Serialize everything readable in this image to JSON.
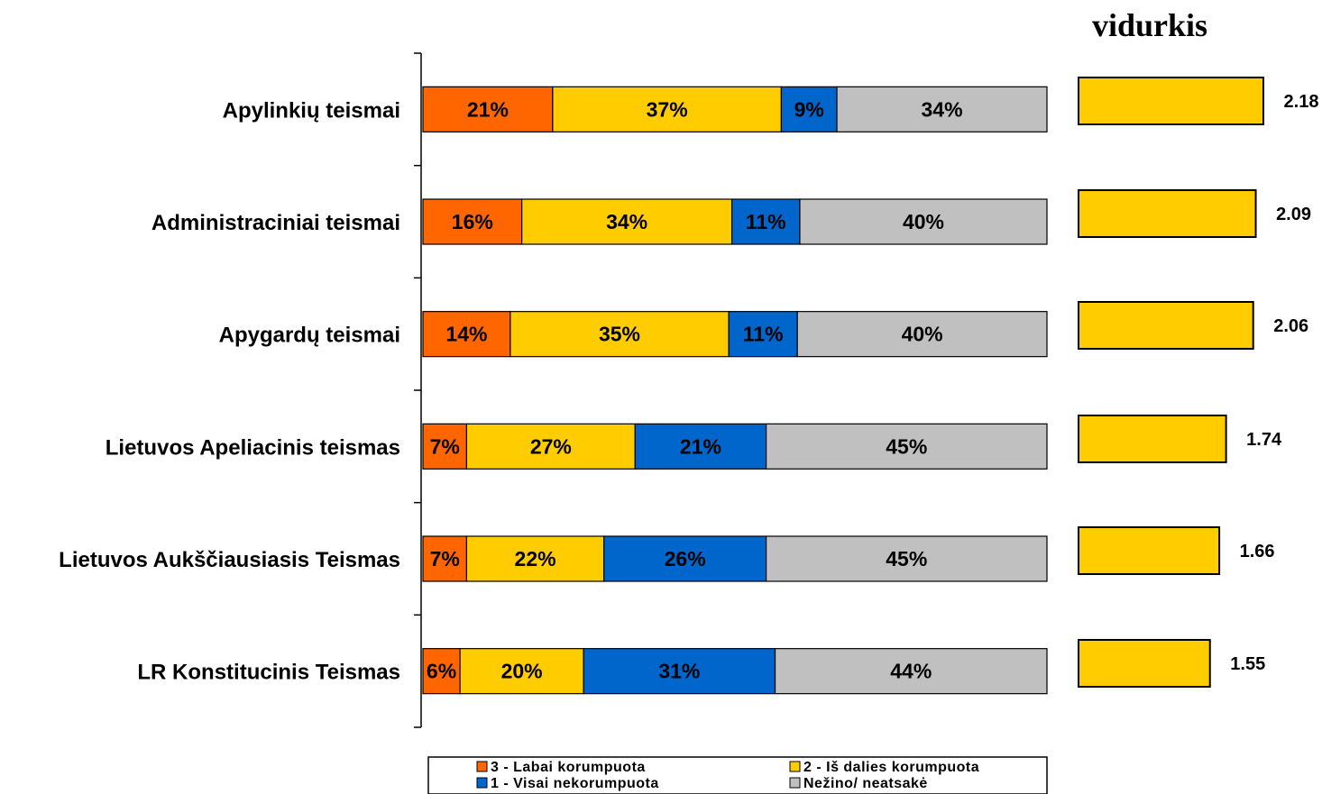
{
  "chart_data": {
    "type": "bar",
    "orientation": "horizontal",
    "stacked": true,
    "categories": [
      "Apylinkių teismai",
      "Administraciniai teismai",
      "Apygardų teismai",
      "Lietuvos Apeliacinis teismas",
      "Lietuvos Aukščiausiasis Teismas",
      "LR Konstitucinis Teismas"
    ],
    "series": [
      {
        "name": "3 - Labai korumpuota",
        "color": "#FF6600",
        "values": [
          21,
          16,
          14,
          7,
          7,
          6
        ]
      },
      {
        "name": "2 - Iš dalies korumpuota",
        "color": "#FFCC00",
        "values": [
          37,
          34,
          35,
          27,
          22,
          20
        ]
      },
      {
        "name": "1 - Visai nekorumpuota",
        "color": "#0066CC",
        "values": [
          9,
          11,
          11,
          21,
          26,
          31
        ]
      },
      {
        "name": "Nežino/ neatsakė",
        "color": "#C0C0C0",
        "values": [
          34,
          40,
          40,
          45,
          45,
          44
        ]
      }
    ],
    "value_suffix": "%",
    "legend_position": "bottom",
    "legend_entries": [
      "3 - Labai korumpuota",
      "2 - Iš dalies korumpuota",
      "1 - Visai nekorumpuota",
      "Nežino/ neatsakė"
    ],
    "average": {
      "title": "vidurkis",
      "color": "#FFCC00",
      "values": [
        2.18,
        2.09,
        2.06,
        1.74,
        1.66,
        1.55
      ],
      "labels": [
        "2.18",
        "2.09",
        "2.06",
        "1.74",
        "1.66",
        "1.55"
      ]
    }
  }
}
